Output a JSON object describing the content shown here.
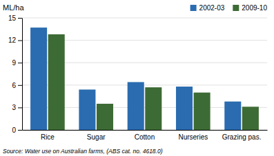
{
  "chart_data": {
    "type": "bar",
    "categories": [
      "Rice",
      "Sugar",
      "Cotton",
      "Nurseries",
      "Grazing pas."
    ],
    "series": [
      {
        "name": "2002-03",
        "color": "#2B6CB0",
        "values": [
          13.7,
          5.4,
          6.4,
          5.8,
          3.8
        ]
      },
      {
        "name": "2009-10",
        "color": "#3D6B35",
        "values": [
          12.8,
          3.5,
          5.7,
          5.0,
          3.1
        ]
      }
    ],
    "ylabel": "ML/ha",
    "annotations": [
      "Source: Water use on Australian farms, (ABS cat. no. 4618.0)"
    ],
    "ylim": [
      0,
      15
    ],
    "yticks": [
      0,
      3,
      6,
      9,
      12,
      15
    ],
    "grid": true,
    "legend": "upper-right"
  }
}
